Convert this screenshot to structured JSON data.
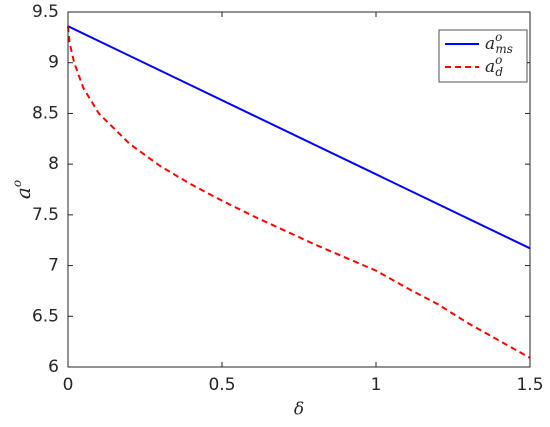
{
  "chart_data": {
    "type": "line",
    "x_label": "δ",
    "y_label": "ao",
    "xlim": [
      0,
      1.5
    ],
    "xticks": [
      0,
      0.5,
      1,
      1.5
    ],
    "ylim": [
      6,
      9.5
    ],
    "yticks": [
      6,
      6.5,
      7,
      7.5,
      8,
      8.5,
      9,
      9.5
    ],
    "legend": "upper right",
    "series": [
      {
        "name": "aoms",
        "color": "#0000ff",
        "style": "solid",
        "x": [
          0,
          1.5
        ],
        "values": [
          9.36,
          7.17
        ]
      },
      {
        "name": "aod",
        "color": "#ff0000",
        "style": "dashed",
        "x": [
          0,
          0.005,
          0.02,
          0.05,
          0.1,
          0.2,
          0.3,
          0.4,
          0.5,
          0.6,
          0.7,
          0.8,
          0.9,
          1.0,
          1.1,
          1.2,
          1.3,
          1.4,
          1.5
        ],
        "values": [
          9.36,
          9.2,
          9.0,
          8.75,
          8.5,
          8.2,
          7.98,
          7.8,
          7.64,
          7.49,
          7.35,
          7.21,
          7.08,
          6.95,
          6.78,
          6.62,
          6.43,
          6.26,
          6.09
        ]
      }
    ]
  }
}
